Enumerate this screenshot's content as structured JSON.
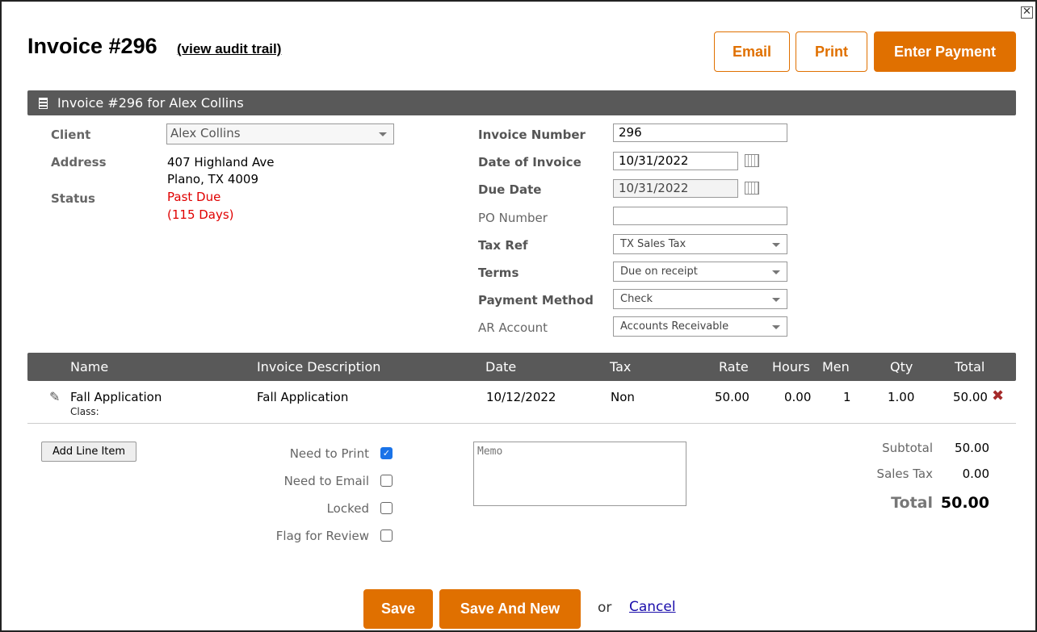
{
  "header": {
    "title": "Invoice #296",
    "audit_link": "(view audit trail)",
    "email": "Email",
    "print": "Print",
    "enter_payment": "Enter Payment",
    "close": "✕"
  },
  "section_title": "Invoice #296 for Alex Collins",
  "client": {
    "client_label": "Client",
    "client_value": "Alex Collins",
    "address_label": "Address",
    "address_line1": "407 Highland Ave",
    "address_line2": "Plano, TX 4009",
    "status_label": "Status",
    "status": "Past Due",
    "status_days": "(115 Days)"
  },
  "fields": {
    "invoice_number_label": "Invoice Number",
    "invoice_number": "296",
    "date_label": "Date of Invoice",
    "date": "10/31/2022",
    "due_label": "Due Date",
    "due": "10/31/2022",
    "po_label": "PO Number",
    "po": "",
    "tax_label": "Tax Ref",
    "tax": "TX Sales Tax",
    "terms_label": "Terms",
    "terms": "Due on receipt",
    "payment_label": "Payment Method",
    "payment": "Check",
    "ar_label": "AR Account",
    "ar": "Accounts Receivable"
  },
  "table": {
    "headers": [
      "Name",
      "Invoice Description",
      "Date",
      "Tax",
      "Rate",
      "Hours",
      "Men",
      "Qty",
      "Total"
    ],
    "rows": [
      {
        "name": "Fall Application",
        "class": "Class:",
        "description": "Fall Application",
        "date": "10/12/2022",
        "tax": "Non",
        "rate": "50.00",
        "hours": "0.00",
        "men": "1",
        "qty": "1.00",
        "total": "50.00"
      }
    ]
  },
  "footer": {
    "add_line": "Add Line Item",
    "need_print": "Need to Print",
    "need_print_checked": true,
    "need_email": "Need to Email",
    "need_email_checked": false,
    "locked": "Locked",
    "locked_checked": false,
    "flag": "Flag for Review",
    "flag_checked": false,
    "memo_placeholder": "Memo",
    "subtotal_label": "Subtotal",
    "subtotal": "50.00",
    "tax_label": "Sales Tax",
    "tax": "0.00",
    "total_label": "Total",
    "total": "50.00"
  },
  "actions": {
    "save": "Save",
    "save_new": "Save And New",
    "or": "or",
    "cancel": "Cancel"
  },
  "colors": {
    "accent": "#e07000",
    "header_bar": "#595959",
    "past_due": "#e00000"
  }
}
